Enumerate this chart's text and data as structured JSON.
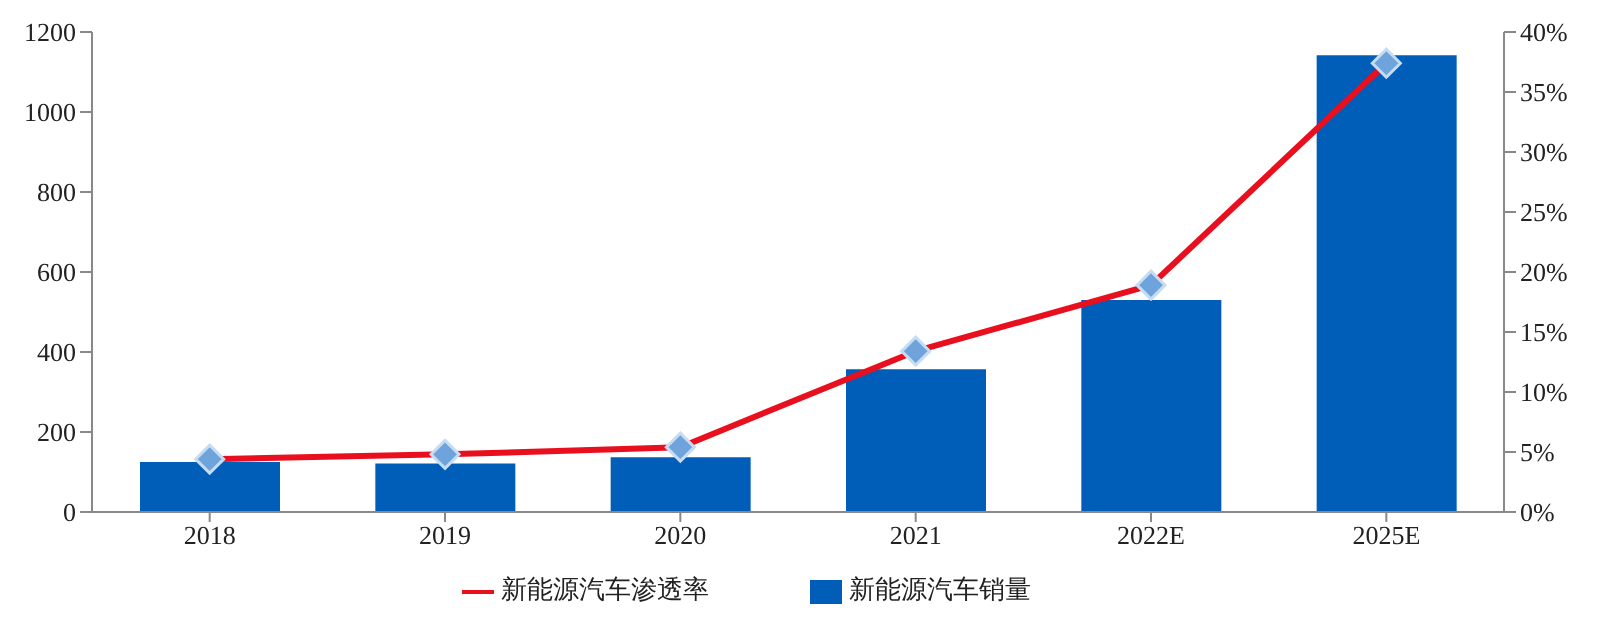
{
  "chart_data": {
    "type": "bar",
    "categories": [
      "2018",
      "2019",
      "2020",
      "2021",
      "2022E",
      "2025E"
    ],
    "series": [
      {
        "name": "新能源汽车销量",
        "color": "#005eb8",
        "values": [
          125,
          121,
          137,
          357,
          530,
          1142
        ]
      },
      {
        "name": "新能源汽车渗透率",
        "type": "line",
        "axis": "y2",
        "color": "#e8101f",
        "marker": "diamond",
        "values": [
          4.4,
          4.8,
          5.4,
          13.4,
          18.9,
          37.4
        ]
      }
    ],
    "ylim": [
      0,
      1200
    ],
    "yticks": [
      0,
      200,
      400,
      600,
      800,
      1000,
      1200
    ],
    "y2lim": [
      0,
      40
    ],
    "y2ticks": [
      {
        "value": 0,
        "label": "0%"
      },
      {
        "value": 5,
        "label": "5%"
      },
      {
        "value": 10,
        "label": "10%"
      },
      {
        "value": 15,
        "label": "15%"
      },
      {
        "value": 20,
        "label": "20%"
      },
      {
        "value": 25,
        "label": "25%"
      },
      {
        "value": 30,
        "label": "30%"
      },
      {
        "value": 35,
        "label": "35%"
      },
      {
        "value": 40,
        "label": "40%"
      }
    ],
    "grid": false,
    "legend": "bottom"
  }
}
